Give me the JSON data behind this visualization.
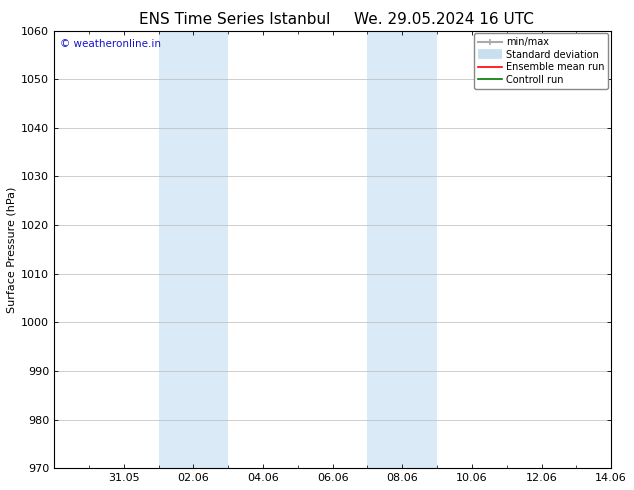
{
  "title_left": "ENS Time Series Istanbul",
  "title_right": "We. 29.05.2024 16 UTC",
  "ylabel": "Surface Pressure (hPa)",
  "ylim": [
    970,
    1060
  ],
  "yticks": [
    970,
    980,
    990,
    1000,
    1010,
    1020,
    1030,
    1040,
    1050,
    1060
  ],
  "xtick_labels": [
    "31.05",
    "02.06",
    "04.06",
    "06.06",
    "08.06",
    "10.06",
    "12.06",
    "14.06"
  ],
  "xtick_positions": [
    2,
    4,
    6,
    8,
    10,
    12,
    14,
    16
  ],
  "xlim": [
    0,
    16
  ],
  "shaded_regions": [
    {
      "start": 3,
      "end": 5
    },
    {
      "start": 9,
      "end": 11
    }
  ],
  "shade_color": "#daeaf7",
  "watermark_text": "© weatheronline.in",
  "watermark_color": "#1515cc",
  "bg_color": "#ffffff",
  "legend_items": [
    {
      "label": "min/max",
      "color": "#aaaaaa",
      "lw": 1.5
    },
    {
      "label": "Standard deviation",
      "color": "#c8dff0",
      "lw": 7
    },
    {
      "label": "Ensemble mean run",
      "color": "#ff0000",
      "lw": 1.2
    },
    {
      "label": "Controll run",
      "color": "#007700",
      "lw": 1.2
    }
  ],
  "grid_color": "#bbbbbb",
  "title_fontsize": 11,
  "tick_fontsize": 8,
  "ylabel_fontsize": 8,
  "watermark_fontsize": 7.5,
  "legend_fontsize": 7
}
